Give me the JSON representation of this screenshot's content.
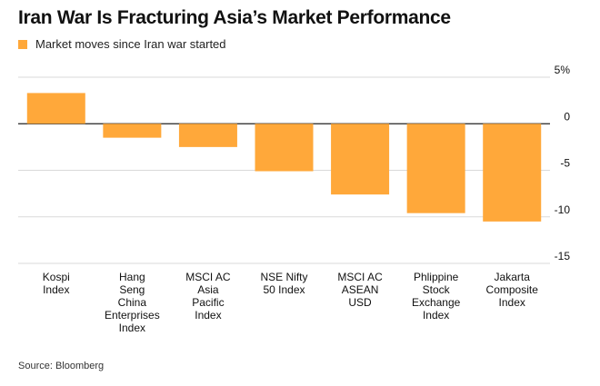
{
  "chart_data": {
    "type": "bar",
    "title": "Iran War Is Fracturing Asia’s Market Performance",
    "legend": {
      "position": "top-left",
      "entries": [
        "Market moves since Iran war started"
      ]
    },
    "categories": [
      [
        "Kospi",
        "Index"
      ],
      [
        "Hang",
        "Seng",
        "China",
        "Enterprises",
        "Index"
      ],
      [
        "MSCI AC",
        "Asia",
        "Pacific",
        "Index"
      ],
      [
        "NSE Nifty",
        "50 Index"
      ],
      [
        "MSCI AC",
        "ASEAN",
        "USD"
      ],
      [
        "Phlippine",
        "Stock",
        "Exchange",
        "Index"
      ],
      [
        "Jakarta",
        "Composite",
        "Index"
      ]
    ],
    "series": [
      {
        "name": "Market moves since Iran war started",
        "values": [
          3.3,
          -1.5,
          -2.5,
          -5.1,
          -7.6,
          -9.6,
          -10.5
        ]
      }
    ],
    "ylim": [
      -15,
      5
    ],
    "yticks": [
      5,
      0,
      -5,
      -10,
      -15
    ],
    "ytick_labels": [
      "5%",
      "0",
      "-5",
      "-10",
      "-15"
    ],
    "yaxis_position": "right",
    "grid": true,
    "xlabel": "",
    "ylabel": "",
    "source": "Source: Bloomberg",
    "colors": {
      "bar": "#FFA83A",
      "grid": "#D9D9D9",
      "zero_line": "#222222",
      "text": "#111111"
    }
  }
}
